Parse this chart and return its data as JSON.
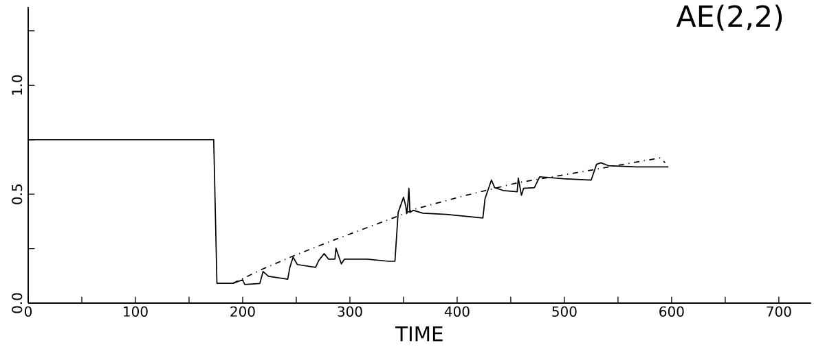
{
  "chart_data": {
    "type": "line",
    "title": "AE(2,2)",
    "xlabel": "TIME",
    "xlim": [
      0,
      730
    ],
    "ylim": [
      0,
      1.36
    ],
    "xticks": [
      0,
      {
        "value": 50,
        "label": null
      },
      100,
      {
        "value": 150,
        "label": null
      },
      200,
      {
        "value": 250,
        "label": null
      },
      300,
      {
        "value": 350,
        "label": null
      },
      400,
      {
        "value": 450,
        "label": null
      },
      500,
      {
        "value": 550,
        "label": null
      },
      600,
      {
        "value": 650,
        "label": null
      },
      700
    ],
    "yticks": [
      {
        "value": 0,
        "label": "0.0"
      },
      {
        "value": 0.25,
        "label": null
      },
      {
        "value": 0.5,
        "label": "0.5"
      },
      {
        "value": 0.75,
        "label": null
      },
      {
        "value": 1.0,
        "label": "1.0"
      },
      {
        "value": 1.25,
        "label": null
      }
    ],
    "grid": false,
    "marker": "none",
    "series": [
      {
        "color": "#000000",
        "line_style": "solid",
        "x": [
          0,
          173,
          176,
          191,
          200,
          202,
          216,
          219,
          224,
          242,
          244,
          247,
          251,
          268,
          271,
          276,
          280,
          286,
          287,
          292,
          295,
          316,
          336,
          342,
          345,
          350,
          352,
          353,
          354,
          355,
          356,
          359,
          368,
          390,
          411,
          424,
          426,
          432,
          435,
          443,
          456,
          457,
          460,
          462,
          472,
          477,
          499,
          525,
          530,
          534,
          541,
          567,
          597
        ],
        "values": [
          0.75,
          0.75,
          0.091,
          0.091,
          0.107,
          0.085,
          0.09,
          0.145,
          0.123,
          0.11,
          0.164,
          0.211,
          0.177,
          0.164,
          0.196,
          0.227,
          0.202,
          0.202,
          0.252,
          0.18,
          0.202,
          0.202,
          0.192,
          0.192,
          0.416,
          0.486,
          0.448,
          0.41,
          0.454,
          0.527,
          0.416,
          0.426,
          0.413,
          0.407,
          0.397,
          0.391,
          0.479,
          0.565,
          0.53,
          0.517,
          0.511,
          0.574,
          0.495,
          0.527,
          0.53,
          0.58,
          0.571,
          0.565,
          0.637,
          0.644,
          0.631,
          0.625,
          0.625
        ]
      },
      {
        "color": "#000000",
        "line_style": "dashed",
        "x": [
          191,
          218,
          248,
          282,
          342,
          361,
          406,
          456,
          520,
          563,
          589,
          594
        ],
        "values": [
          0.091,
          0.155,
          0.218,
          0.284,
          0.394,
          0.432,
          0.492,
          0.552,
          0.606,
          0.644,
          0.666,
          0.644
        ]
      }
    ]
  }
}
